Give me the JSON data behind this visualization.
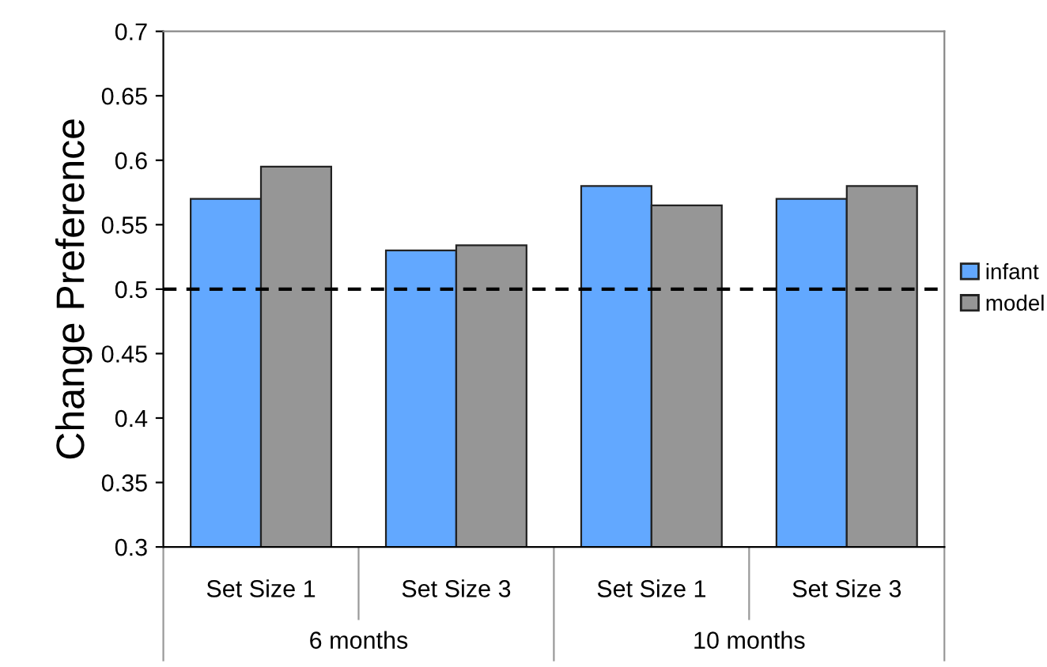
{
  "chart_data": {
    "type": "bar",
    "ylabel": "Change Preference",
    "categories": [
      "Set Size 1",
      "Set Size 3",
      "Set Size 1",
      "Set Size 3"
    ],
    "series": [
      {
        "name": "infant",
        "color": "#62a8ff",
        "values": [
          0.57,
          0.53,
          0.58,
          0.57
        ]
      },
      {
        "name": "model",
        "color": "#969696",
        "values": [
          0.595,
          0.534,
          0.565,
          0.58
        ]
      }
    ],
    "ylim": [
      0.3,
      0.7
    ],
    "yticks": [
      0.3,
      0.35,
      0.4,
      0.45,
      0.5,
      0.55,
      0.6,
      0.65,
      0.7
    ],
    "ref_lines": [
      {
        "axis": "y",
        "value": 0.5,
        "color": "#000000",
        "line_style": "dashed"
      }
    ],
    "annotations": [
      "6 months",
      "10 months"
    ],
    "legend": "right",
    "grid": false
  }
}
